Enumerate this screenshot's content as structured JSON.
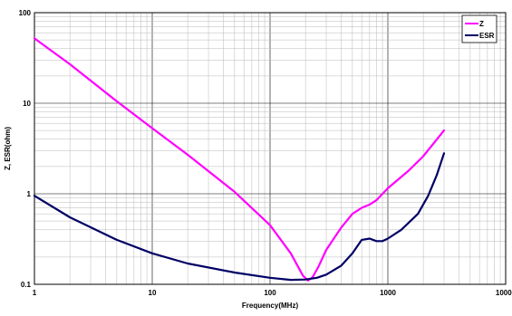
{
  "chart_data": {
    "type": "line",
    "title": "",
    "xlabel": "Frequency(MHz)",
    "ylabel": "Z, ESR(ohm)",
    "x_scale": "log",
    "y_scale": "log",
    "xlim": [
      1,
      10000
    ],
    "ylim": [
      0.1,
      100
    ],
    "x_tick_labels": [
      "1",
      "10",
      "100",
      "1000",
      "10000"
    ],
    "y_tick_labels": [
      "100",
      "10",
      "1",
      "0.1"
    ],
    "grid": true,
    "legend_position": "top-right",
    "series": [
      {
        "name": "Z",
        "color": "#ff00ff",
        "x": [
          1,
          2,
          5,
          10,
          20,
          50,
          100,
          150,
          190,
          210,
          230,
          260,
          300,
          400,
          500,
          600,
          700,
          800,
          1000,
          1500,
          2000,
          3000
        ],
        "y": [
          52,
          27,
          10.5,
          5.3,
          2.7,
          1.05,
          0.45,
          0.22,
          0.125,
          0.11,
          0.12,
          0.16,
          0.24,
          0.42,
          0.6,
          0.7,
          0.76,
          0.85,
          1.15,
          1.8,
          2.6,
          5.0
        ]
      },
      {
        "name": "ESR",
        "color": "#000066",
        "x": [
          1,
          2,
          5,
          10,
          20,
          50,
          100,
          150,
          200,
          250,
          300,
          400,
          500,
          600,
          700,
          800,
          900,
          1000,
          1300,
          1800,
          2200,
          2600,
          3000
        ],
        "y": [
          0.95,
          0.55,
          0.31,
          0.22,
          0.17,
          0.135,
          0.118,
          0.112,
          0.113,
          0.118,
          0.128,
          0.16,
          0.22,
          0.31,
          0.32,
          0.3,
          0.3,
          0.32,
          0.4,
          0.6,
          0.95,
          1.6,
          2.8
        ]
      }
    ]
  }
}
